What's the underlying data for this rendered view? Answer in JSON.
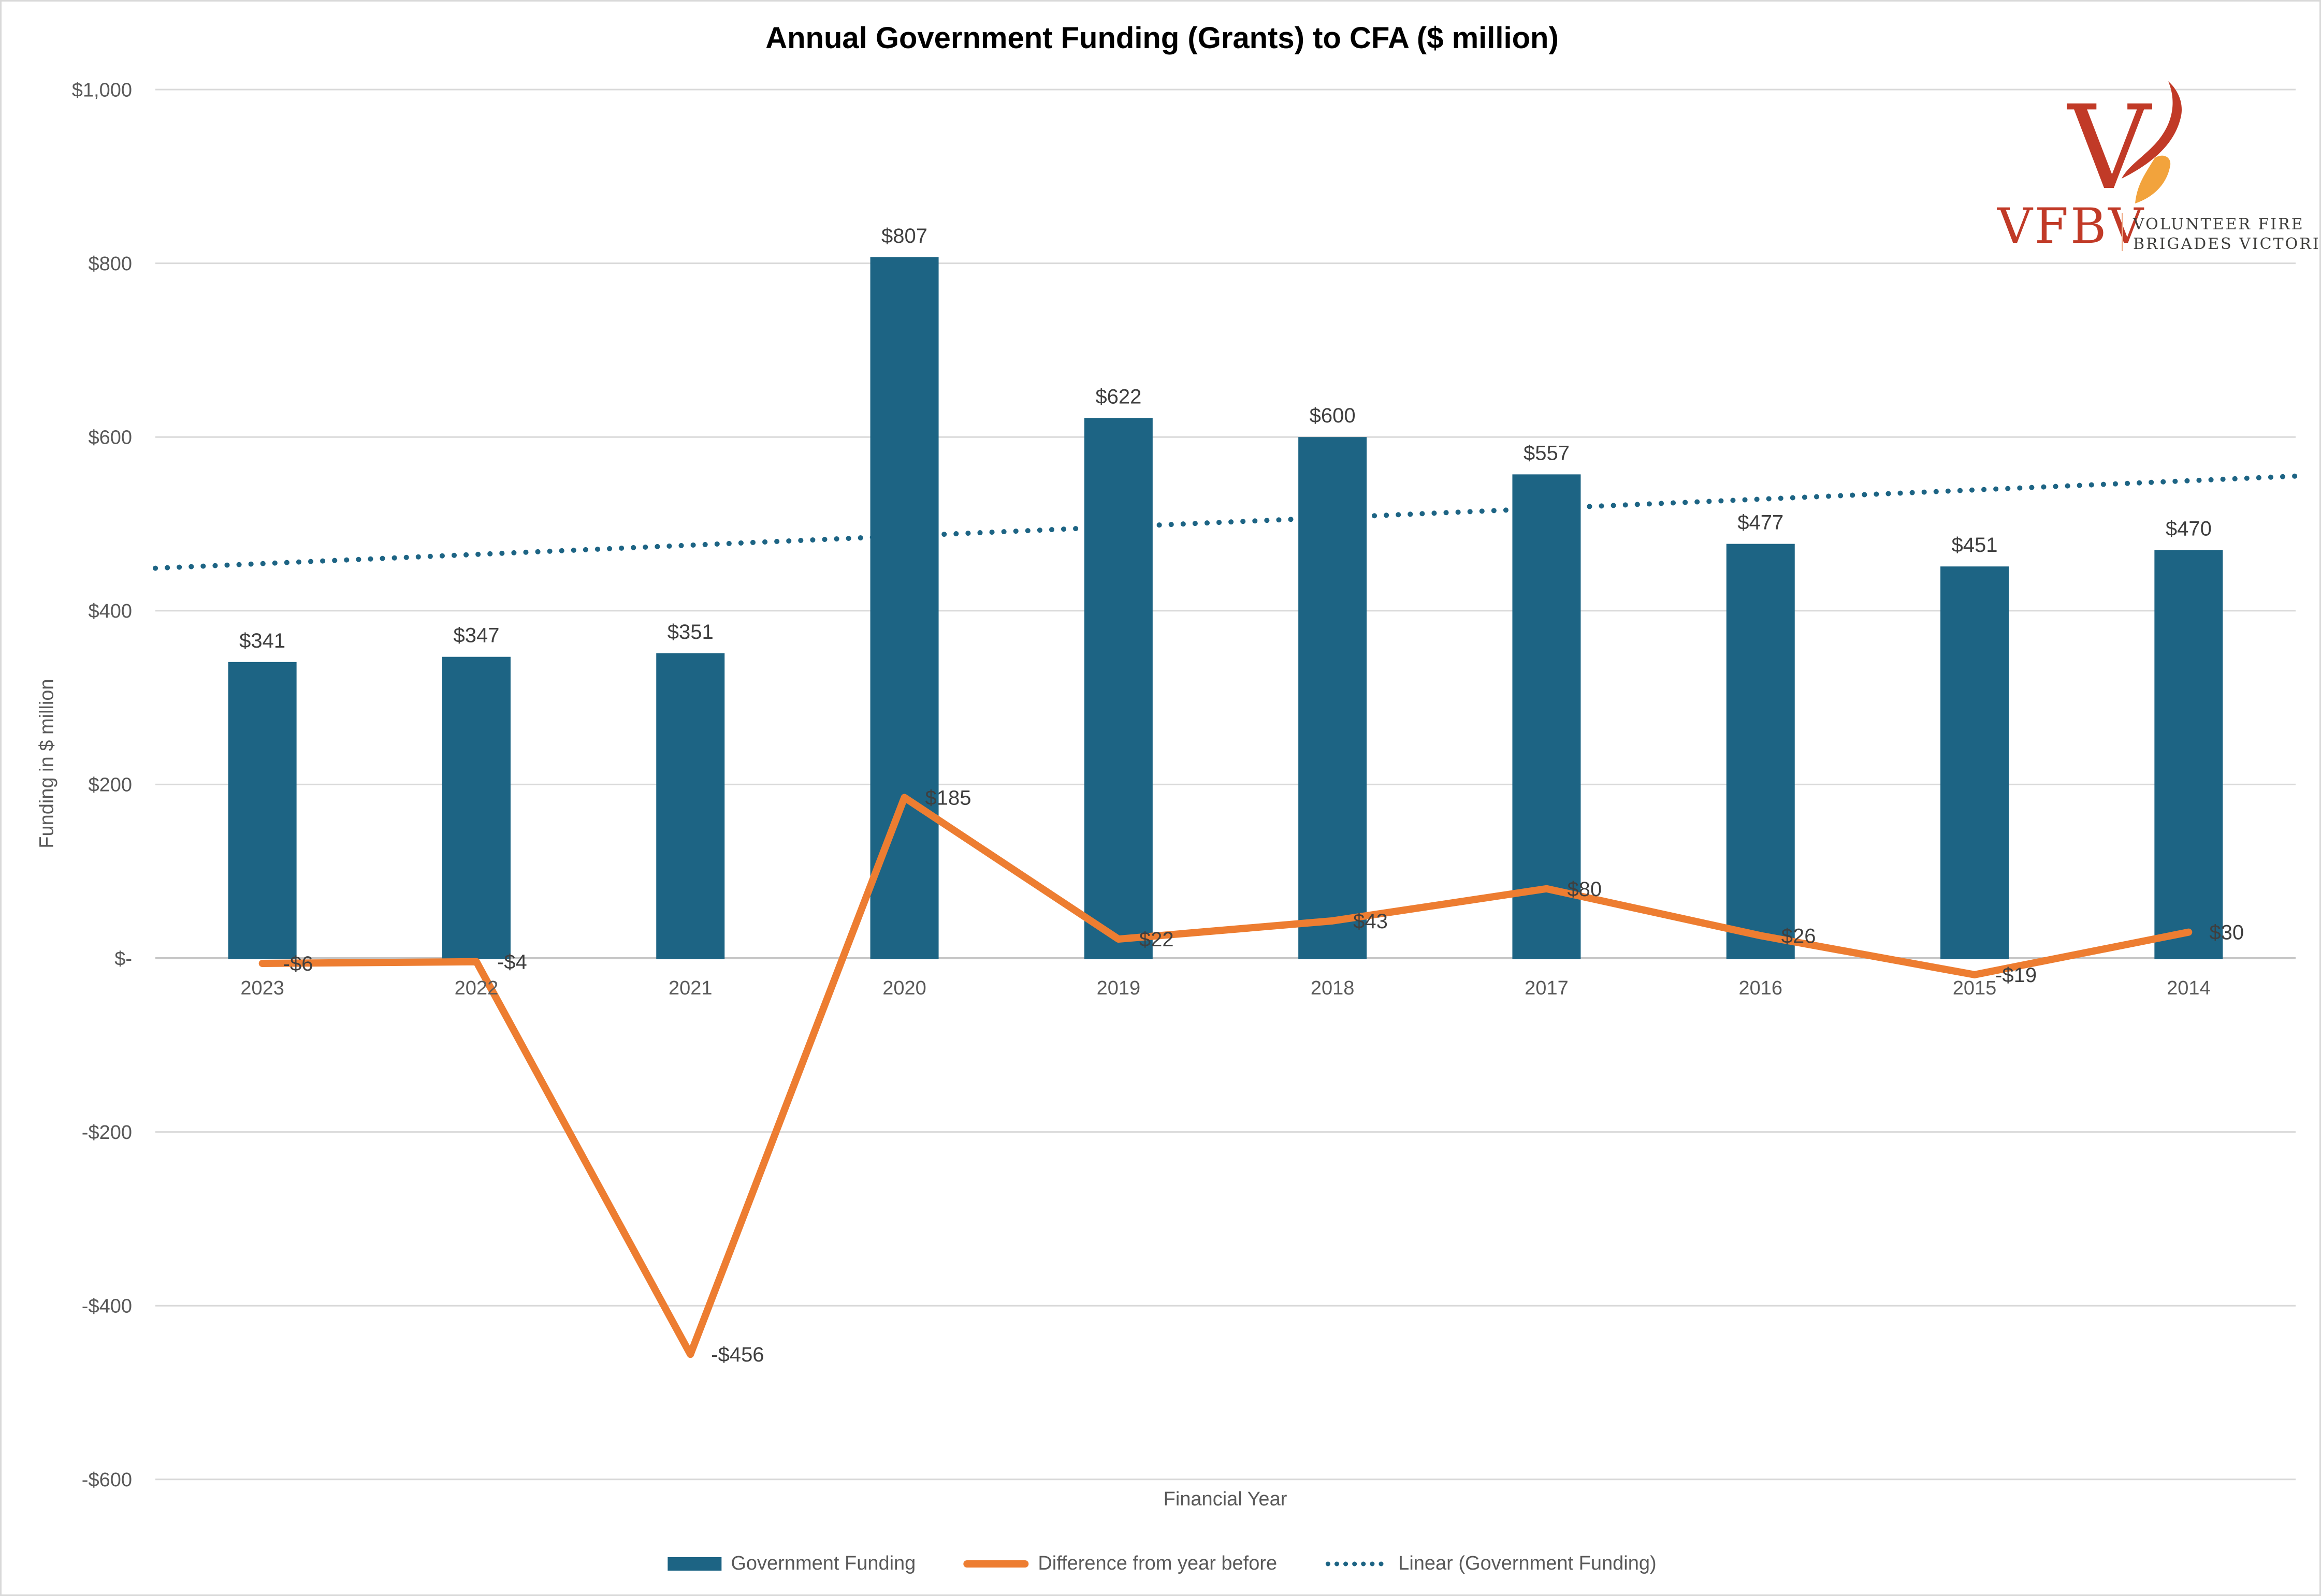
{
  "title": "Annual Government Funding (Grants) to CFA ($ million)",
  "y_axis": {
    "title": "Funding in $ million",
    "ticks": [
      {
        "value": 1000,
        "label": "$1,000"
      },
      {
        "value": 800,
        "label": "$800"
      },
      {
        "value": 600,
        "label": "$600"
      },
      {
        "value": 400,
        "label": "$400"
      },
      {
        "value": 200,
        "label": "$200"
      },
      {
        "value": 0,
        "label": "$-"
      },
      {
        "value": -200,
        "label": "-$200"
      },
      {
        "value": -400,
        "label": "-$400"
      },
      {
        "value": -600,
        "label": "-$600"
      }
    ]
  },
  "x_axis": {
    "title": "Financial Year",
    "categories": [
      "2023",
      "2022",
      "2021",
      "2020",
      "2019",
      "2018",
      "2017",
      "2016",
      "2015",
      "2014"
    ]
  },
  "chart_data": {
    "type": "combo",
    "categories": [
      "2023",
      "2022",
      "2021",
      "2020",
      "2019",
      "2018",
      "2017",
      "2016",
      "2015",
      "2014"
    ],
    "ylim": [
      -600,
      1000
    ],
    "grid": true,
    "series": [
      {
        "name": "Government Funding",
        "type": "bar",
        "values": [
          341,
          347,
          351,
          807,
          622,
          600,
          557,
          477,
          451,
          470
        ],
        "labels": [
          "$341",
          "$347",
          "$351",
          "$807",
          "$622",
          "$600",
          "$557",
          "$477",
          "$451",
          "$470"
        ]
      },
      {
        "name": "Difference from year before",
        "type": "line",
        "values": [
          -6,
          -4,
          -456,
          185,
          22,
          43,
          80,
          26,
          -19,
          30
        ],
        "labels": [
          "-$6",
          "-$4",
          "-$456",
          "$185",
          "$22",
          "$43",
          "$80",
          "$26",
          "-$19",
          "$30"
        ]
      },
      {
        "name": "Linear (Government Funding)",
        "type": "trendline",
        "start_value": 449,
        "end_value": 555
      }
    ],
    "title": "Annual Government Funding (Grants) to CFA ($ million)",
    "xlabel": "Financial Year",
    "ylabel": "Funding in $ million",
    "legend_position": "bottom"
  },
  "legend": {
    "items": [
      {
        "label": "Government Funding",
        "marker": "bar"
      },
      {
        "label": "Difference from year before",
        "marker": "line"
      },
      {
        "label": "Linear (Government Funding)",
        "marker": "dotted-line"
      }
    ]
  },
  "logo": {
    "abbr": "VFBV",
    "name_line1": "VOLUNTEER FIRE",
    "name_line2": "BRIGADES VICTORIA"
  },
  "colors": {
    "teal": "#1d6484",
    "orange": "#ed7d31",
    "trend": "#1d6484",
    "gridline": "#d9d9d9",
    "zero_line": "#c6c6c6",
    "axis_text": "#595959",
    "data_label_text": "#3f3f3f",
    "logo_red": "#c13a27",
    "logo_flame_orange": "#f2a33c",
    "logo_gray": "#3d3d3b",
    "border": "#d9d9d9"
  }
}
